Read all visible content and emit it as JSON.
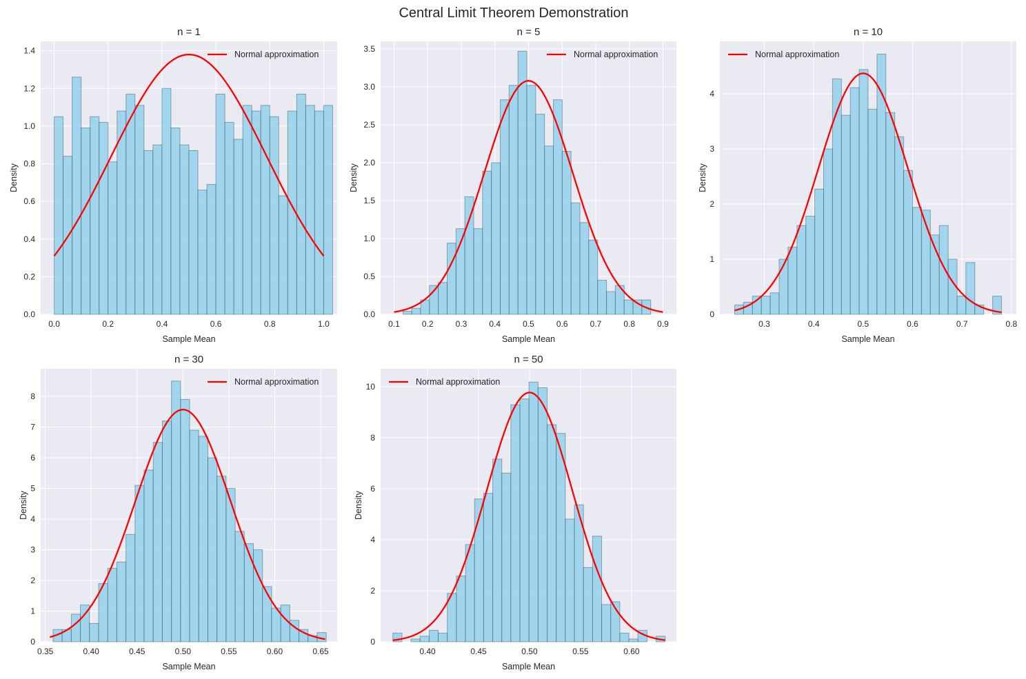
{
  "title": "Central Limit Theorem Demonstration",
  "colors": {
    "bar": "#87ceeb",
    "bar_edge": "#2f4f4f",
    "curve": "#ff0000",
    "axes_bg": "#eaeaf2",
    "grid": "#ffffff"
  },
  "chart_data": [
    {
      "type": "bar",
      "title": "n = 1",
      "xlabel": "Sample Mean",
      "ylabel": "Density",
      "xlim": [
        -0.05,
        1.05
      ],
      "ylim": [
        0,
        1.45
      ],
      "xticks": [
        "0.0",
        "0.2",
        "0.4",
        "0.6",
        "0.8",
        "1.0"
      ],
      "yticks": [
        "0.0",
        "0.2",
        "0.4",
        "0.6",
        "0.8",
        "1.0",
        "1.2",
        "1.4"
      ],
      "grid": true,
      "legend_position": "top-right",
      "bins": {
        "start": 0.0,
        "width": 0.03333
      },
      "values": [
        1.05,
        0.84,
        1.26,
        0.99,
        1.05,
        1.02,
        0.81,
        1.08,
        1.17,
        1.11,
        0.87,
        0.9,
        1.2,
        0.99,
        0.9,
        0.87,
        0.66,
        0.69,
        1.17,
        1.02,
        0.93,
        1.11,
        1.08,
        1.11,
        1.05,
        0.63,
        1.08,
        1.17,
        1.11,
        1.08,
        1.11
      ],
      "series": [
        {
          "name": "Normal approximation",
          "type": "line",
          "mean": 0.5,
          "peak": 1.38,
          "x_range": [
            0.0,
            1.0
          ],
          "y_at_ends": 0.31
        }
      ]
    },
    {
      "type": "bar",
      "title": "n = 5",
      "xlabel": "Sample Mean",
      "ylabel": "Density",
      "xlim": [
        0.06,
        0.94
      ],
      "ylim": [
        0,
        3.6
      ],
      "xticks": [
        "0.1",
        "0.2",
        "0.3",
        "0.4",
        "0.5",
        "0.6",
        "0.7",
        "0.8",
        "0.9"
      ],
      "yticks": [
        "0.0",
        "0.5",
        "1.0",
        "1.5",
        "2.0",
        "2.5",
        "3.0",
        "3.5"
      ],
      "grid": true,
      "legend_position": "top-right",
      "bins": {
        "start": 0.1,
        "width": 0.02633
      },
      "values": [
        0.0,
        0.04,
        0.08,
        0.19,
        0.38,
        0.42,
        0.94,
        1.13,
        1.55,
        1.13,
        1.89,
        2.0,
        2.83,
        3.02,
        3.47,
        3.02,
        2.64,
        2.22,
        2.83,
        2.15,
        1.47,
        1.21,
        0.98,
        0.45,
        0.3,
        0.38,
        0.19,
        0.19,
        0.19,
        0.0
      ],
      "series": [
        {
          "name": "Normal approximation",
          "type": "line",
          "mean": 0.5,
          "peak": 3.08,
          "x_range": [
            0.1,
            0.9
          ],
          "y_at_ends": 0.03
        }
      ]
    },
    {
      "type": "bar",
      "title": "n = 10",
      "xlabel": "Sample Mean",
      "ylabel": "Density",
      "xlim": [
        0.21,
        0.81
      ],
      "ylim": [
        0,
        4.95
      ],
      "xticks": [
        "0.3",
        "0.4",
        "0.5",
        "0.6",
        "0.7",
        "0.8"
      ],
      "yticks": [
        "0",
        "1",
        "2",
        "3",
        "4"
      ],
      "grid": true,
      "legend_position": "top-left",
      "bins": {
        "start": 0.24,
        "width": 0.018
      },
      "values": [
        0.17,
        0.22,
        0.33,
        0.33,
        0.39,
        1.0,
        1.22,
        1.61,
        1.78,
        2.27,
        3.0,
        4.27,
        3.61,
        4.11,
        4.44,
        3.72,
        4.72,
        3.66,
        3.22,
        2.61,
        1.94,
        1.89,
        1.44,
        1.61,
        1.0,
        0.33,
        0.94,
        0.17,
        0.0,
        0.33
      ],
      "series": [
        {
          "name": "Normal approximation",
          "type": "line",
          "mean": 0.5,
          "peak": 4.37,
          "x_range": [
            0.24,
            0.78
          ],
          "y_at_ends": 0.07
        }
      ]
    },
    {
      "type": "bar",
      "title": "n = 30",
      "xlabel": "Sample Mean",
      "ylabel": "Density",
      "xlim": [
        0.345,
        0.668
      ],
      "ylim": [
        0,
        8.9
      ],
      "xticks": [
        "0.35",
        "0.40",
        "0.45",
        "0.50",
        "0.55",
        "0.60",
        "0.65"
      ],
      "yticks": [
        "0",
        "1",
        "2",
        "3",
        "4",
        "5",
        "6",
        "7",
        "8"
      ],
      "grid": true,
      "legend_position": "top-right",
      "bins": {
        "start": 0.3585,
        "width": 0.00992
      },
      "values": [
        0.4,
        0.4,
        0.9,
        1.2,
        0.6,
        1.9,
        2.4,
        2.6,
        3.5,
        5.1,
        5.6,
        6.5,
        7.2,
        8.5,
        7.9,
        6.9,
        6.7,
        6.0,
        5.4,
        5.0,
        3.6,
        3.2,
        3.0,
        1.8,
        1.1,
        1.2,
        0.7,
        0.4,
        0.2,
        0.3
      ],
      "series": [
        {
          "name": "Normal approximation",
          "type": "line",
          "mean": 0.5,
          "peak": 7.57,
          "x_range": [
            0.355,
            0.655
          ],
          "y_at_ends": 0.15
        }
      ]
    },
    {
      "type": "bar",
      "title": "n = 50",
      "xlabel": "Sample Mean",
      "ylabel": "Density",
      "xlim": [
        0.354,
        0.644
      ],
      "ylim": [
        0,
        10.7
      ],
      "xticks": [
        "0.40",
        "0.45",
        "0.50",
        "0.55",
        "0.60"
      ],
      "yticks": [
        "0",
        "2",
        "4",
        "6",
        "8",
        "10"
      ],
      "grid": true,
      "legend_position": "top-left",
      "bins": {
        "start": 0.366,
        "width": 0.0089
      },
      "values": [
        0.34,
        0.0,
        0.11,
        0.22,
        0.45,
        0.34,
        1.9,
        2.58,
        3.81,
        5.6,
        5.82,
        7.16,
        6.61,
        9.29,
        9.52,
        10.18,
        9.96,
        8.51,
        8.17,
        4.81,
        5.37,
        2.91,
        4.14,
        1.46,
        1.57,
        0.34,
        0.11,
        0.45,
        0.0,
        0.22
      ],
      "series": [
        {
          "name": "Normal approximation",
          "type": "line",
          "mean": 0.5,
          "peak": 9.77,
          "x_range": [
            0.366,
            0.633
          ],
          "y_at_ends": 0.06
        }
      ]
    }
  ]
}
